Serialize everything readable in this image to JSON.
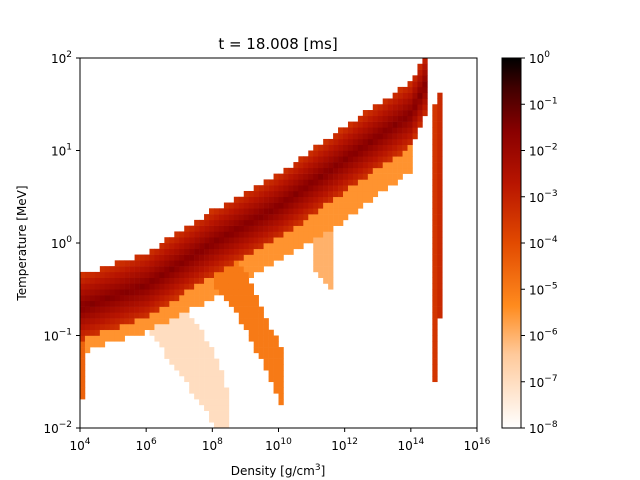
{
  "chart_data": {
    "type": "heatmap",
    "title": "t = 18.008 [ms]",
    "xlabel": "Density [g/cm",
    "xlabel_sup": "3",
    "xlabel_close": "]",
    "ylabel": "Temperature [MeV]",
    "x_scale": "log",
    "y_scale": "log",
    "xlim": [
      10000,
      1e+16
    ],
    "ylim": [
      0.01,
      100
    ],
    "x_ticks": [
      {
        "base": "10",
        "exp": "4",
        "value": 10000
      },
      {
        "base": "10",
        "exp": "6",
        "value": 1000000
      },
      {
        "base": "10",
        "exp": "8",
        "value": 100000000
      },
      {
        "base": "10",
        "exp": "10",
        "value": 10000000000
      },
      {
        "base": "10",
        "exp": "12",
        "value": 1000000000000
      },
      {
        "base": "10",
        "exp": "14",
        "value": 100000000000000
      },
      {
        "base": "10",
        "exp": "16",
        "value": 1e+16
      }
    ],
    "y_ticks": [
      {
        "base": "10",
        "exp": "−2",
        "value": 0.01
      },
      {
        "base": "10",
        "exp": "−1",
        "value": 0.1
      },
      {
        "base": "10",
        "exp": "0",
        "value": 1
      },
      {
        "base": "10",
        "exp": "1",
        "value": 10
      },
      {
        "base": "10",
        "exp": "2",
        "value": 100
      }
    ],
    "colorbar": {
      "scale": "log",
      "range": [
        1e-08,
        1
      ],
      "colormap": "gist_heat_r",
      "ticks": [
        {
          "base": "10",
          "exp": "0",
          "value": 1
        },
        {
          "base": "10",
          "exp": "−1",
          "value": 0.1
        },
        {
          "base": "10",
          "exp": "−2",
          "value": 0.01
        },
        {
          "base": "10",
          "exp": "−3",
          "value": 0.001
        },
        {
          "base": "10",
          "exp": "−4",
          "value": 0.0001
        },
        {
          "base": "10",
          "exp": "−5",
          "value": 1e-05
        },
        {
          "base": "10",
          "exp": "−6",
          "value": 1e-06
        },
        {
          "base": "10",
          "exp": "−7",
          "value": 1e-07
        },
        {
          "base": "10",
          "exp": "−8",
          "value": 1e-08
        }
      ]
    },
    "grid": false,
    "regions": [
      {
        "kind": "ridge",
        "points": [
          [
            10000,
            0.2
          ],
          [
            1000000,
            0.35
          ],
          [
            100000000,
            1.0
          ],
          [
            10000000000,
            2.5
          ],
          [
            1000000000000,
            8
          ],
          [
            100000000000000,
            25
          ],
          [
            300000000000000,
            55
          ]
        ],
        "width_dex": 0.35,
        "log_density": -3.4,
        "center_dens": -1.5
      },
      {
        "kind": "lower_ridge",
        "points": [
          [
            10000,
            0.13
          ],
          [
            1000000,
            0.22
          ],
          [
            100000000,
            0.5
          ],
          [
            10000000000,
            1.3
          ],
          [
            1000000000000,
            3.5
          ],
          [
            100000000000000,
            12
          ]
        ],
        "width_dex": 0.3,
        "log_density": -5.5
      },
      {
        "kind": "band",
        "points": [
          [
            1000000,
            0.3
          ],
          [
            10000000,
            0.1
          ],
          [
            100000000,
            0.03
          ],
          [
            300000000,
            0.01
          ]
        ],
        "width_dex": 0.4,
        "log_density": -7.0
      },
      {
        "kind": "band",
        "points": [
          [
            100000000,
            0.7
          ],
          [
            1000000000,
            0.25
          ],
          [
            5000000000,
            0.07
          ],
          [
            15000000000,
            0.03
          ]
        ],
        "width_dex": 0.3,
        "log_density": -5.0
      },
      {
        "kind": "band",
        "points": [
          [
            100000000000,
            1.0
          ],
          [
            500000000000,
            0.6
          ]
        ],
        "width_dex": 0.3,
        "log_density": -6.0
      },
      {
        "kind": "column",
        "x": 500000000000000,
        "y_range": [
          0.03,
          30
        ],
        "log_density": -3.5
      },
      {
        "kind": "column",
        "x": 700000000000000,
        "y_range": [
          0.15,
          40
        ],
        "log_density": -3.2
      },
      {
        "kind": "column",
        "x": 10000,
        "y_range": [
          0.02,
          0.2
        ],
        "log_density": -4.5
      }
    ]
  }
}
